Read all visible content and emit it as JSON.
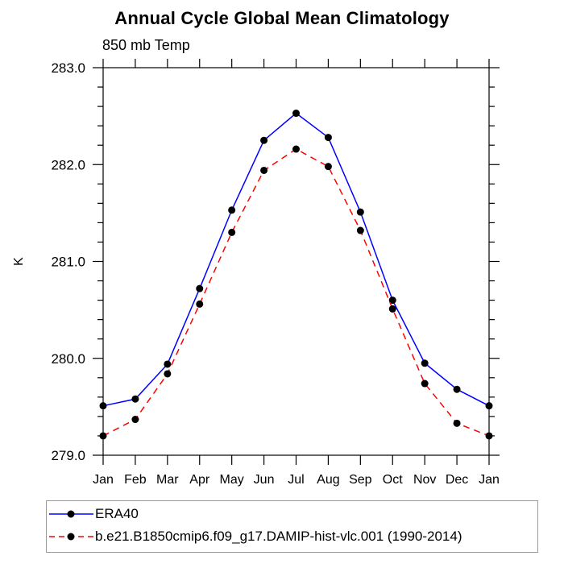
{
  "header": {
    "title": "Annual Cycle Global Mean Climatology",
    "subtitle": "850 mb Temp"
  },
  "chart_data": {
    "type": "line",
    "title": "Annual Cycle Global Mean Climatology",
    "subtitle": "850 mb Temp",
    "xlabel": "",
    "ylabel": "K",
    "categories": [
      "Jan",
      "Feb",
      "Mar",
      "Apr",
      "May",
      "Jun",
      "Jul",
      "Aug",
      "Sep",
      "Oct",
      "Nov",
      "Dec",
      "Jan"
    ],
    "ylim": [
      279.0,
      283.0
    ],
    "ytick_major_step": 1.0,
    "ytick_minor_step": 0.2,
    "ytick_labels": [
      "279.0",
      "280.0",
      "281.0",
      "282.0",
      "283.0"
    ],
    "grid": false,
    "legend_position": "bottom-box",
    "series": [
      {
        "name": "ERA40",
        "color": "#0000ff",
        "style": "solid",
        "marker": "circle",
        "marker_color": "#000000",
        "values": [
          279.51,
          279.58,
          279.94,
          280.72,
          281.53,
          282.25,
          282.53,
          282.28,
          281.51,
          280.6,
          279.95,
          279.68,
          279.51
        ]
      },
      {
        "name": "b.e21.B1850cmip6.f09_g17.DAMIP-hist-vlc.001 (1990-2014)",
        "color": "#ff0000",
        "style": "dashed",
        "marker": "circle",
        "marker_color": "#000000",
        "values": [
          279.2,
          279.37,
          279.84,
          280.56,
          281.3,
          281.94,
          282.16,
          281.98,
          281.32,
          280.51,
          279.74,
          279.33,
          279.2
        ]
      }
    ]
  },
  "colors": {
    "axis": "#000000",
    "text": "#000000",
    "legend_border": "#9a9a9a",
    "era40_line": "#0000ff",
    "model_line": "#ff0000",
    "marker": "#000000"
  }
}
